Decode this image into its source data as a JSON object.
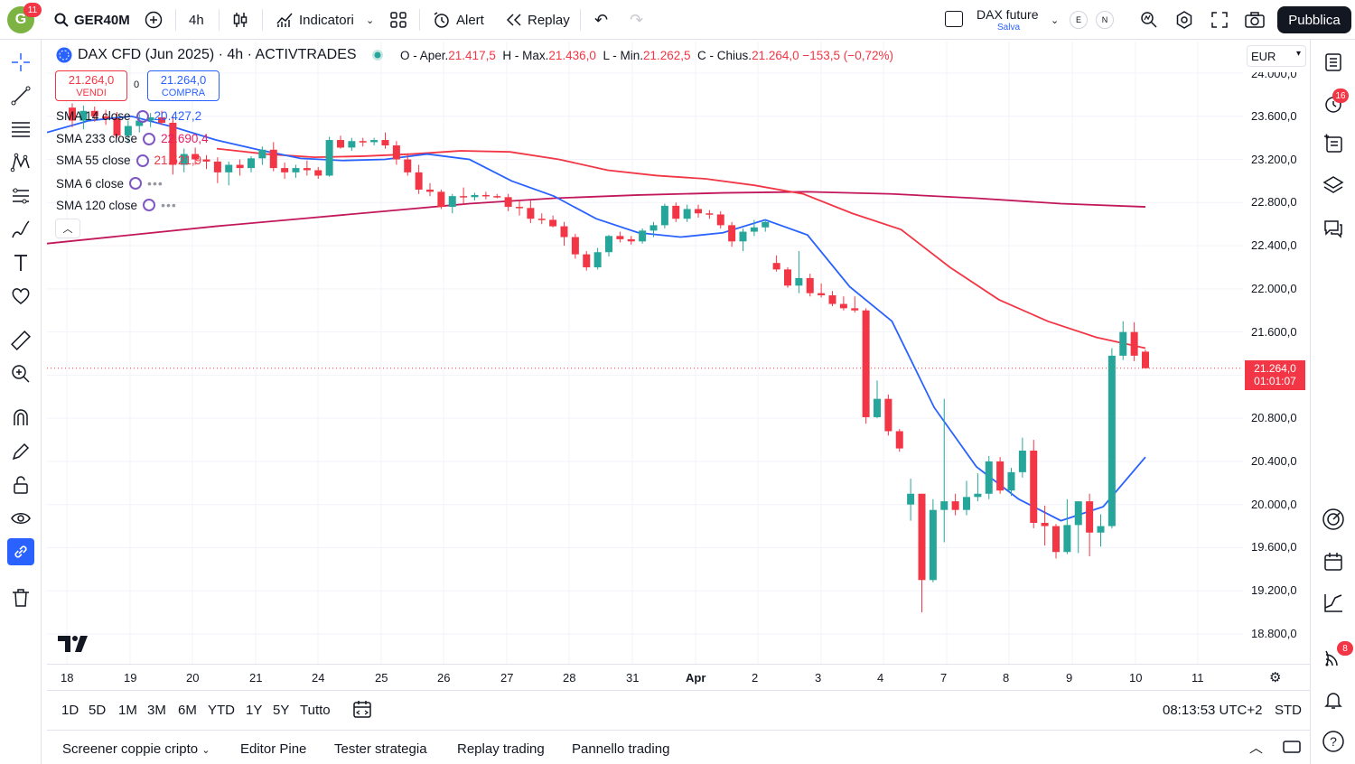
{
  "topbar": {
    "avatar_letter": "G",
    "avatar_badge": "11",
    "symbol": "GER40M",
    "interval": "4h",
    "indicators_label": "Indicatori",
    "alert_label": "Alert",
    "replay_label": "Replay",
    "layout_title": "DAX future",
    "layout_sub": "Salva",
    "circle_e": "E",
    "circle_n": "N",
    "publish_label": "Pubblica"
  },
  "legend": {
    "title": "DAX CFD (Jun 2025) · 4h · ACTIVTRADES",
    "o_label": "O - Aper.",
    "o_val": "21.417,5",
    "h_label": "H - Max.",
    "h_val": "21.436,0",
    "l_label": "L - Min.",
    "l_val": "21.262,5",
    "c_label": "C - Chius.",
    "c_val": "21.264,0",
    "change": "−153,5 (−0,72%)",
    "sell_price": "21.264,0",
    "sell_label": "VENDI",
    "spread": "0",
    "buy_price": "21.264,0",
    "buy_label": "COMPRA"
  },
  "indicators": [
    {
      "name": "SMA 14 close",
      "value": "20.427,2",
      "color": "#2962ff"
    },
    {
      "name": "SMA 233 close",
      "value": "22.690,4",
      "color": "#e91e63"
    },
    {
      "name": "SMA 55 close",
      "value": "21.521,9",
      "color": "#f23645"
    },
    {
      "name": "SMA 6 close",
      "value": "",
      "color": ""
    },
    {
      "name": "SMA 120 close",
      "value": "",
      "color": ""
    }
  ],
  "price_axis": {
    "currency": "EUR",
    "ticks": [
      "24.000,0",
      "23.600,0",
      "23.200,0",
      "22.800,0",
      "22.400,0",
      "22.000,0",
      "21.600,0",
      "20.800,0",
      "20.400,0",
      "20.000,0",
      "19.600,0",
      "19.200,0",
      "18.800,0"
    ],
    "last_price": "21.264,0",
    "countdown": "01:01:07"
  },
  "time_axis": [
    "18",
    "19",
    "20",
    "21",
    "24",
    "25",
    "26",
    "27",
    "28",
    "31",
    "Apr",
    "2",
    "3",
    "4",
    "7",
    "8",
    "9",
    "10",
    "11"
  ],
  "ranges": [
    "1D",
    "5D",
    "1M",
    "3M",
    "6M",
    "YTD",
    "1Y",
    "5Y",
    "Tutto"
  ],
  "clock": "08:13:53 UTC+2",
  "session": "STD",
  "footer_tabs": [
    "Screener coppie cripto",
    "Editor Pine",
    "Tester strategia",
    "Replay trading",
    "Pannello trading"
  ],
  "right_badges": {
    "alerts": "16",
    "notifications": "8"
  },
  "colors": {
    "up": "#26a69a",
    "down": "#f23645",
    "sma14": "#2962ff",
    "sma55": "#f23645",
    "sma233": "#c2185b"
  },
  "chart_data": {
    "type": "candlestick",
    "price_range": [
      18600,
      24100
    ],
    "candles": [
      {
        "o": 23680,
        "h": 23720,
        "l": 23500,
        "c": 23560
      },
      {
        "o": 23560,
        "h": 23700,
        "l": 23480,
        "c": 23650
      },
      {
        "o": 23650,
        "h": 23690,
        "l": 23550,
        "c": 23600
      },
      {
        "o": 23600,
        "h": 23660,
        "l": 23520,
        "c": 23580
      },
      {
        "o": 23580,
        "h": 23640,
        "l": 23400,
        "c": 23420
      },
      {
        "o": 23420,
        "h": 23560,
        "l": 23350,
        "c": 23510
      },
      {
        "o": 23510,
        "h": 23620,
        "l": 23450,
        "c": 23560
      },
      {
        "o": 23560,
        "h": 23630,
        "l": 23500,
        "c": 23590
      },
      {
        "o": 23590,
        "h": 23650,
        "l": 23520,
        "c": 23540
      },
      {
        "o": 23540,
        "h": 23600,
        "l": 23060,
        "c": 23150
      },
      {
        "o": 23150,
        "h": 23300,
        "l": 23080,
        "c": 23250
      },
      {
        "o": 23250,
        "h": 23310,
        "l": 23150,
        "c": 23200
      },
      {
        "o": 23200,
        "h": 23240,
        "l": 23110,
        "c": 23180
      },
      {
        "o": 23180,
        "h": 23220,
        "l": 22980,
        "c": 23080
      },
      {
        "o": 23080,
        "h": 23180,
        "l": 22960,
        "c": 23150
      },
      {
        "o": 23150,
        "h": 23200,
        "l": 23050,
        "c": 23120
      },
      {
        "o": 23120,
        "h": 23230,
        "l": 23080,
        "c": 23210
      },
      {
        "o": 23210,
        "h": 23320,
        "l": 23150,
        "c": 23290
      },
      {
        "o": 23290,
        "h": 23360,
        "l": 23090,
        "c": 23120
      },
      {
        "o": 23120,
        "h": 23170,
        "l": 23020,
        "c": 23080
      },
      {
        "o": 23080,
        "h": 23150,
        "l": 23030,
        "c": 23120
      },
      {
        "o": 23120,
        "h": 23190,
        "l": 23050,
        "c": 23100
      },
      {
        "o": 23100,
        "h": 23130,
        "l": 23020,
        "c": 23050
      },
      {
        "o": 23050,
        "h": 23410,
        "l": 23040,
        "c": 23380
      },
      {
        "o": 23380,
        "h": 23420,
        "l": 23300,
        "c": 23310
      },
      {
        "o": 23310,
        "h": 23400,
        "l": 23280,
        "c": 23370
      },
      {
        "o": 23370,
        "h": 23400,
        "l": 23320,
        "c": 23360
      },
      {
        "o": 23360,
        "h": 23400,
        "l": 23330,
        "c": 23380
      },
      {
        "o": 23380,
        "h": 23450,
        "l": 23300,
        "c": 23330
      },
      {
        "o": 23330,
        "h": 23370,
        "l": 23150,
        "c": 23200
      },
      {
        "o": 23200,
        "h": 23250,
        "l": 23050,
        "c": 23080
      },
      {
        "o": 23080,
        "h": 23150,
        "l": 22880,
        "c": 22920
      },
      {
        "o": 22920,
        "h": 22980,
        "l": 22860,
        "c": 22900
      },
      {
        "o": 22900,
        "h": 22920,
        "l": 22740,
        "c": 22760
      },
      {
        "o": 22760,
        "h": 22880,
        "l": 22700,
        "c": 22860
      },
      {
        "o": 22860,
        "h": 22940,
        "l": 22780,
        "c": 22850
      },
      {
        "o": 22850,
        "h": 22890,
        "l": 22820,
        "c": 22870
      },
      {
        "o": 22870,
        "h": 22900,
        "l": 22830,
        "c": 22860
      },
      {
        "o": 22860,
        "h": 22880,
        "l": 22840,
        "c": 22850
      },
      {
        "o": 22850,
        "h": 22880,
        "l": 22720,
        "c": 22760
      },
      {
        "o": 22760,
        "h": 22820,
        "l": 22680,
        "c": 22750
      },
      {
        "o": 22750,
        "h": 22820,
        "l": 22610,
        "c": 22650
      },
      {
        "o": 22650,
        "h": 22700,
        "l": 22600,
        "c": 22640
      },
      {
        "o": 22640,
        "h": 22680,
        "l": 22570,
        "c": 22580
      },
      {
        "o": 22580,
        "h": 22620,
        "l": 22400,
        "c": 22480
      },
      {
        "o": 22480,
        "h": 22510,
        "l": 22280,
        "c": 22320
      },
      {
        "o": 22320,
        "h": 22350,
        "l": 22170,
        "c": 22200
      },
      {
        "o": 22200,
        "h": 22380,
        "l": 22180,
        "c": 22340
      },
      {
        "o": 22340,
        "h": 22500,
        "l": 22300,
        "c": 22490
      },
      {
        "o": 22490,
        "h": 22530,
        "l": 22430,
        "c": 22460
      },
      {
        "o": 22460,
        "h": 22490,
        "l": 22410,
        "c": 22440
      },
      {
        "o": 22440,
        "h": 22560,
        "l": 22420,
        "c": 22540
      },
      {
        "o": 22540,
        "h": 22620,
        "l": 22480,
        "c": 22590
      },
      {
        "o": 22590,
        "h": 22790,
        "l": 22560,
        "c": 22770
      },
      {
        "o": 22770,
        "h": 22800,
        "l": 22620,
        "c": 22650
      },
      {
        "o": 22650,
        "h": 22780,
        "l": 22620,
        "c": 22740
      },
      {
        "o": 22740,
        "h": 22780,
        "l": 22660,
        "c": 22700
      },
      {
        "o": 22700,
        "h": 22730,
        "l": 22650,
        "c": 22690
      },
      {
        "o": 22690,
        "h": 22720,
        "l": 22560,
        "c": 22590
      },
      {
        "o": 22590,
        "h": 22620,
        "l": 22390,
        "c": 22440
      },
      {
        "o": 22440,
        "h": 22560,
        "l": 22350,
        "c": 22530
      },
      {
        "o": 22530,
        "h": 22640,
        "l": 22490,
        "c": 22570
      },
      {
        "o": 22570,
        "h": 22640,
        "l": 22530,
        "c": 22620
      },
      {
        "o": 22240,
        "h": 22310,
        "l": 22160,
        "c": 22180
      },
      {
        "o": 22180,
        "h": 22200,
        "l": 22010,
        "c": 22030
      },
      {
        "o": 22030,
        "h": 22350,
        "l": 21960,
        "c": 22100
      },
      {
        "o": 22100,
        "h": 22140,
        "l": 21930,
        "c": 21960
      },
      {
        "o": 21960,
        "h": 22050,
        "l": 21920,
        "c": 21940
      },
      {
        "o": 21940,
        "h": 21980,
        "l": 21840,
        "c": 21860
      },
      {
        "o": 21860,
        "h": 21930,
        "l": 21800,
        "c": 21820
      },
      {
        "o": 21820,
        "h": 21930,
        "l": 21780,
        "c": 21800
      },
      {
        "o": 21800,
        "h": 21820,
        "l": 20750,
        "c": 20810
      },
      {
        "o": 20810,
        "h": 21150,
        "l": 20800,
        "c": 20980
      },
      {
        "o": 20980,
        "h": 21020,
        "l": 20640,
        "c": 20680
      },
      {
        "o": 20680,
        "h": 20700,
        "l": 20490,
        "c": 20520
      },
      {
        "o": 20000,
        "h": 20240,
        "l": 19850,
        "c": 20100
      },
      {
        "o": 20100,
        "h": 20100,
        "l": 19000,
        "c": 19300
      },
      {
        "o": 19300,
        "h": 20050,
        "l": 19280,
        "c": 19950
      },
      {
        "o": 19950,
        "h": 20980,
        "l": 19650,
        "c": 20030
      },
      {
        "o": 20030,
        "h": 20100,
        "l": 19900,
        "c": 19950
      },
      {
        "o": 19950,
        "h": 20220,
        "l": 19900,
        "c": 20070
      },
      {
        "o": 20070,
        "h": 20290,
        "l": 20030,
        "c": 20100
      },
      {
        "o": 20100,
        "h": 20450,
        "l": 20050,
        "c": 20400
      },
      {
        "o": 20400,
        "h": 20440,
        "l": 20100,
        "c": 20130
      },
      {
        "o": 20130,
        "h": 20340,
        "l": 20080,
        "c": 20300
      },
      {
        "o": 20300,
        "h": 20620,
        "l": 20250,
        "c": 20500
      },
      {
        "o": 20500,
        "h": 20600,
        "l": 19780,
        "c": 19830
      },
      {
        "o": 19830,
        "h": 19990,
        "l": 19620,
        "c": 19800
      },
      {
        "o": 19800,
        "h": 19820,
        "l": 19500,
        "c": 19560
      },
      {
        "o": 19560,
        "h": 20050,
        "l": 19540,
        "c": 19810
      },
      {
        "o": 19810,
        "h": 20000,
        "l": 19550,
        "c": 20030
      },
      {
        "o": 20030,
        "h": 20100,
        "l": 19520,
        "c": 19740
      },
      {
        "o": 19740,
        "h": 19910,
        "l": 19610,
        "c": 19800
      },
      {
        "o": 19800,
        "h": 21450,
        "l": 19780,
        "c": 21380
      },
      {
        "o": 21380,
        "h": 21700,
        "l": 21340,
        "c": 21600
      },
      {
        "o": 21600,
        "h": 21690,
        "l": 21330,
        "c": 21380
      },
      {
        "o": 21417.5,
        "h": 21436,
        "l": 21262.5,
        "c": 21264
      }
    ],
    "sma14": [
      23450,
      23560,
      23600,
      23500,
      23380,
      23290,
      23210,
      23190,
      23200,
      23250,
      23200,
      23000,
      22860,
      22650,
      22520,
      22480,
      22520,
      22640,
      22500,
      22020,
      21700,
      20900,
      20350,
      20050,
      19850,
      19980,
      20440
    ],
    "sma55": [
      23300,
      23250,
      23220,
      23230,
      23250,
      23280,
      23270,
      23200,
      23100,
      23050,
      23020,
      22960,
      22880,
      22700,
      22550,
      22200,
      21900,
      21700,
      21550,
      21450
    ],
    "sma233": [
      22420,
      22500,
      22580,
      22650,
      22720,
      22790,
      22840,
      22870,
      22890,
      22900,
      22880,
      22840,
      22790,
      22760
    ]
  }
}
